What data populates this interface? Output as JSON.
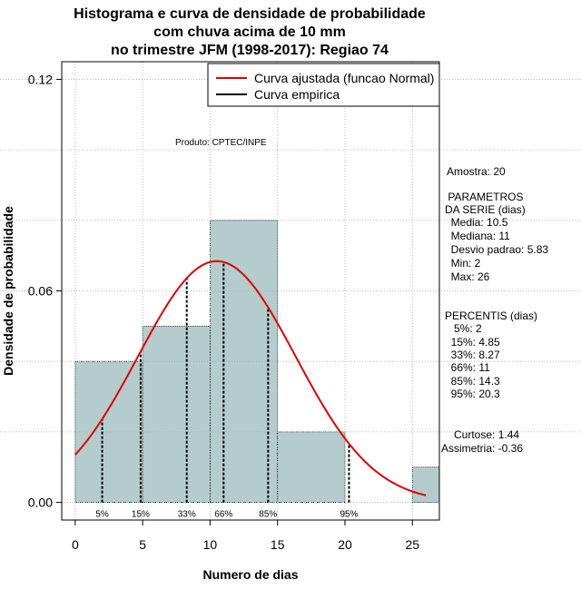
{
  "chart_data": {
    "type": "bar",
    "title": [
      "Histograma e curva de densidade de probabilidade",
      "com chuva acima de 10 mm",
      "no trimestre JFM (1998-2017): Regiao 74"
    ],
    "xlabel": "Numero de dias",
    "ylabel": "Densidade de probabilidade",
    "xlim": [
      -1,
      27
    ],
    "ylim": [
      -0.005,
      0.125
    ],
    "x_ticks": [
      0,
      5,
      10,
      15,
      20,
      25
    ],
    "y_ticks": [
      0.0,
      0.06,
      0.12
    ],
    "y_tick_labels": [
      "0.00",
      "0.06",
      "0.12"
    ],
    "grid": true,
    "grid_x": [
      0,
      5,
      10,
      15,
      20,
      25
    ],
    "grid_y": [
      0.02,
      0.04,
      0.06,
      0.08,
      0.1,
      0.12
    ],
    "bins": [
      {
        "x0": 0,
        "x1": 5,
        "density": 0.04
      },
      {
        "x0": 5,
        "x1": 10,
        "density": 0.05
      },
      {
        "x0": 10,
        "x1": 15,
        "density": 0.08
      },
      {
        "x0": 15,
        "x1": 20,
        "density": 0.02
      },
      {
        "x0": 20,
        "x1": 25,
        "density": 0.0
      },
      {
        "x0": 25,
        "x1": 27,
        "density": 0.01
      }
    ],
    "bar_color": "#b4cccc",
    "normal_curve": {
      "name": "Curva ajustada (funcao Normal)",
      "mean": 10.5,
      "sd": 5.83,
      "x_from": 0,
      "x_to": 26,
      "color": "#e00000"
    },
    "empirical_curve": {
      "name": "Curva empirica",
      "color": "#000000"
    },
    "legend_position": "top-right",
    "watermark": "Produto: CPTEC/INPE",
    "percentile_lines": [
      {
        "label": "5%",
        "x": 2
      },
      {
        "label": "15%",
        "x": 4.85
      },
      {
        "label": "33%",
        "x": 8.27
      },
      {
        "label": "66%",
        "x": 11
      },
      {
        "label": "85%",
        "x": 14.3
      },
      {
        "label": "95%",
        "x": 20.3
      }
    ]
  },
  "stats": {
    "amostra": "Amostra: 20",
    "parametros_title": " PARAMETROS",
    "parametros_subtitle": "DA SERIE (dias)",
    "parametros": [
      "  Media: 10.5",
      "  Mediana: 11",
      "  Desvio padrao: 5.83",
      "  Min: 2",
      "  Max: 26"
    ],
    "percentis_title": "PERCENTIS (dias)",
    "percentis": [
      "   5%: 2",
      "  15%: 4.85",
      "  33%: 8.27",
      "  66%: 11",
      "  85%: 14.3",
      "  95%: 20.3"
    ],
    "curtose": "   Curtose: 1.44",
    "assimetria": "Assimetria: -0.36"
  }
}
